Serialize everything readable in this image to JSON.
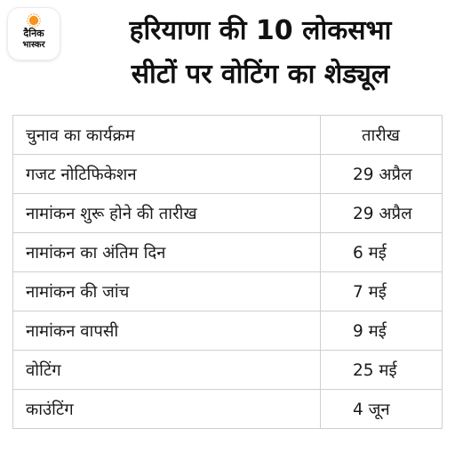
{
  "brand": {
    "name_line1": "दैनिक",
    "name_line2": "भास्कर",
    "accent_color": "#f7941d"
  },
  "title": {
    "line1": "हरियाणा की 10 लोकसभा",
    "line2": "सीटों पर वोटिंग का शेड्यूल"
  },
  "table": {
    "headers": [
      "चुनाव का कार्यक्रम",
      "तारीख"
    ],
    "rows": [
      {
        "event": "गजट नोटिफिकेशन",
        "date": "29 अप्रैल"
      },
      {
        "event": "नामांकन शुरू होने की तारीख",
        "date": "29 अप्रैल"
      },
      {
        "event": "नामांकन का अंतिम दिन",
        "date": "6 मई"
      },
      {
        "event": "नामांकन की जांच",
        "date": "7 मई"
      },
      {
        "event": "नामांकन वापसी",
        "date": "9 मई"
      },
      {
        "event": "वोटिंग",
        "date": "25 मई"
      },
      {
        "event": "काउंटिंग",
        "date": "4 जून"
      }
    ]
  }
}
